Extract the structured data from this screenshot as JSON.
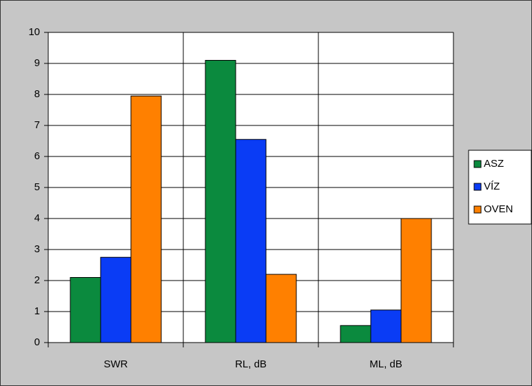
{
  "chart_data": {
    "type": "bar",
    "categories": [
      "SWR",
      "RL, dB",
      "ML, dB"
    ],
    "series": [
      {
        "name": "ASZ",
        "color": "#0b8a3e",
        "values": [
          2.1,
          9.1,
          0.55
        ]
      },
      {
        "name": "VÍZ",
        "color": "#0a3cf5",
        "values": [
          2.75,
          6.55,
          1.05
        ]
      },
      {
        "name": "OVEN",
        "color": "#ff8000",
        "values": [
          7.95,
          2.2,
          4.0
        ]
      }
    ],
    "ylim": [
      0,
      10
    ],
    "yticks": [
      0,
      1,
      2,
      3,
      4,
      5,
      6,
      7,
      8,
      9,
      10
    ],
    "grid": true,
    "legend": "right"
  }
}
